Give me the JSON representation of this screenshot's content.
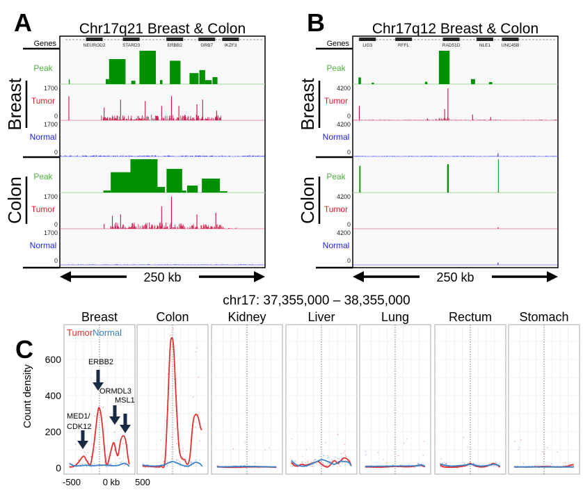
{
  "colors": {
    "peak": "#009000",
    "peak_label": "#4caf3a",
    "tumor": "#cc1040",
    "tumor_label": "#d81c28",
    "normal": "#2020ee",
    "curve_tumor": "#e03030",
    "curve_normal": "#3b7fc4",
    "arrow": "#182a44"
  },
  "panel_a": {
    "letter": "A",
    "title": "Chr17q21 Breast & Colon",
    "genes_label": "Genes",
    "genes": [
      "NEUROD2",
      "STARD3",
      "ERBB2",
      "GRB7",
      "IKZF3"
    ],
    "gene_positions_kb": [
      42,
      87,
      140,
      179,
      208
    ],
    "scale_bar": "250 kb",
    "groups": [
      {
        "name": "Breast",
        "peak": {
          "label": "Peak",
          "bars": [
            [
              11,
              12,
              15
            ],
            [
              56,
              60,
              15
            ],
            [
              60,
              80,
              75
            ],
            [
              87,
              92,
              10
            ],
            [
              97,
              117,
              100
            ],
            [
              122,
              125,
              12
            ],
            [
              134,
              147,
              70
            ],
            [
              158,
              169,
              33
            ],
            [
              170,
              177,
              42
            ],
            [
              177,
              185,
              12
            ],
            [
              186,
              192,
              21
            ]
          ]
        },
        "tumor": {
          "label": "Tumor",
          "max": "1700",
          "min": "0",
          "scale": 1700,
          "spikes": [
            [
              11,
              1280
            ],
            [
              54,
              680
            ],
            [
              74,
              1100
            ],
            [
              104,
              1020
            ],
            [
              124,
              760
            ],
            [
              136,
              1280
            ],
            [
              145,
              760
            ],
            [
              167,
              850
            ],
            [
              174,
              1100
            ],
            [
              191,
              510
            ]
          ],
          "noise": [
            [
              50,
              200,
              300
            ]
          ]
        },
        "normal": {
          "label": "Normal",
          "max": "1700",
          "min": "0",
          "scale": 1700,
          "noise": [
            [
              0,
              250,
              60
            ]
          ]
        }
      },
      {
        "name": "Colon",
        "peak": {
          "label": "Peak",
          "bars": [
            [
              53,
              62,
              6
            ],
            [
              62,
              86,
              61
            ],
            [
              86,
              119,
              100
            ],
            [
              119,
              128,
              17
            ],
            [
              130,
              149,
              71
            ],
            [
              149,
              154,
              6
            ],
            [
              155,
              168,
              21
            ],
            [
              173,
              195,
              42
            ],
            [
              195,
              204,
              4
            ]
          ]
        },
        "tumor": {
          "label": "Tumor",
          "max": "1700",
          "min": "0",
          "scale": 1700,
          "spikes": [
            [
              54,
              250
            ],
            [
              64,
              680
            ],
            [
              74,
              760
            ],
            [
              124,
              1190
            ],
            [
              136,
              1700
            ],
            [
              167,
              760
            ],
            [
              190,
              850
            ]
          ],
          "noise": [
            [
              62,
              168,
              350
            ],
            [
              172,
              200,
              250
            ],
            [
              200,
              215,
              60
            ]
          ]
        },
        "normal": {
          "label": "Normal",
          "max": "1700",
          "min": "0",
          "scale": 1700,
          "noise": [
            [
              0,
              250,
              30
            ]
          ]
        }
      }
    ]
  },
  "panel_b": {
    "letter": "B",
    "title": "Chr17q12 Breast & Colon",
    "genes_label": "Genes",
    "genes": [
      "LIG3",
      "RFFL",
      "RAD51D",
      "NLE1",
      "UNC45B"
    ],
    "gene_positions_kb": [
      18,
      62,
      120,
      161,
      192
    ],
    "scale_bar": "250 kb",
    "groups": [
      {
        "name": "Breast",
        "peak": {
          "label": "Peak",
          "bars": [
            [
              7,
              10,
              20
            ],
            [
              23,
              26,
              4
            ],
            [
              88,
              91,
              7
            ],
            [
              105,
              118,
              100
            ],
            [
              144,
              149,
              15
            ],
            [
              166,
              170,
              6
            ]
          ]
        },
        "tumor": {
          "label": "Tumor",
          "max": "4200",
          "min": "0",
          "scale": 4200,
          "spikes": [
            [
              8,
              1890
            ],
            [
              91,
              250
            ],
            [
              112,
              1470
            ],
            [
              116,
              4200
            ],
            [
              146,
              750
            ],
            [
              168,
              420
            ]
          ],
          "noise": [
            [
              0,
              250,
              80
            ],
            [
              100,
              118,
              500
            ]
          ]
        },
        "normal": {
          "label": "Normal",
          "max": "4200",
          "min": "0",
          "scale": 4200,
          "spikes": [
            [
              177,
              400
            ]
          ],
          "noise": [
            [
              0,
              250,
              80
            ]
          ]
        }
      },
      {
        "name": "Colon",
        "peak": {
          "label": "Peak",
          "bars": [
            [
              8,
              9.5,
              80
            ],
            [
              115,
              117,
              85
            ],
            [
              177,
              177.6,
              100
            ]
          ]
        },
        "tumor": {
          "label": "Tumor",
          "max": "4200",
          "min": "0",
          "scale": 4200,
          "spikes": [
            [
              177,
              200
            ]
          ],
          "noise": []
        },
        "normal": {
          "label": "Normal",
          "max": "4200",
          "min": "0",
          "scale": 4200,
          "spikes": [
            [
              177,
              300
            ]
          ],
          "noise": [
            [
              0,
              250,
              30
            ]
          ]
        }
      }
    ]
  },
  "chart_data": {
    "type": "line",
    "letter": "C",
    "title": "chr17: 37,355,000 – 38,355,000",
    "ylabel": "Count density",
    "xlim": [
      -500,
      500
    ],
    "ylim": [
      0,
      790
    ],
    "x_tick_labels": [
      "-500",
      "0 kb",
      "500"
    ],
    "y_ticks": [
      0,
      200,
      400,
      600
    ],
    "y_tick_labels": [
      "0",
      "200",
      "400",
      "600"
    ],
    "legend": {
      "tumor": "Tumor",
      "normal": "Normal",
      "placement": "top-left"
    },
    "annotations": [
      {
        "text": "ERBB2",
        "x_kb": 0
      },
      {
        "text": "ORMDL3",
        "x_kb": 230
      },
      {
        "text": "MSL1",
        "x_kb": 370
      },
      {
        "text": "MED1/",
        "x_kb": -230
      },
      {
        "text": "CDK12",
        "x_kb": -230
      }
    ],
    "facets": [
      {
        "name": "Breast",
        "tumor": [
          [
            -470,
            5
          ],
          [
            -400,
            8
          ],
          [
            -330,
            30
          ],
          [
            -250,
            65
          ],
          [
            -200,
            40
          ],
          [
            -140,
            20
          ],
          [
            -90,
            120
          ],
          [
            -30,
            300
          ],
          [
            0,
            330
          ],
          [
            40,
            250
          ],
          [
            90,
            60
          ],
          [
            120,
            15
          ],
          [
            170,
            80
          ],
          [
            220,
            140
          ],
          [
            260,
            90
          ],
          [
            290,
            70
          ],
          [
            330,
            150
          ],
          [
            370,
            178
          ],
          [
            410,
            150
          ],
          [
            445,
            60
          ],
          [
            465,
            20
          ]
        ],
        "normal": [
          [
            -470,
            25
          ],
          [
            -400,
            12
          ],
          [
            -300,
            12
          ],
          [
            -200,
            15
          ],
          [
            -100,
            12
          ],
          [
            0,
            15
          ],
          [
            100,
            15
          ],
          [
            200,
            12
          ],
          [
            300,
            15
          ],
          [
            380,
            25
          ],
          [
            430,
            20
          ],
          [
            465,
            8
          ]
        ]
      },
      {
        "name": "Colon",
        "tumor": [
          [
            -470,
            10
          ],
          [
            -350,
            8
          ],
          [
            -250,
            5
          ],
          [
            -180,
            8
          ],
          [
            -120,
            30
          ],
          [
            -80,
            300
          ],
          [
            -40,
            650
          ],
          [
            -10,
            720
          ],
          [
            20,
            650
          ],
          [
            60,
            350
          ],
          [
            100,
            120
          ],
          [
            140,
            55
          ],
          [
            190,
            45
          ],
          [
            230,
            20
          ],
          [
            270,
            60
          ],
          [
            320,
            250
          ],
          [
            360,
            295
          ],
          [
            400,
            280
          ],
          [
            440,
            220
          ],
          [
            460,
            210
          ]
        ],
        "normal": [
          [
            -470,
            15
          ],
          [
            -300,
            10
          ],
          [
            -150,
            15
          ],
          [
            -50,
            30
          ],
          [
            0,
            35
          ],
          [
            50,
            30
          ],
          [
            150,
            15
          ],
          [
            250,
            10
          ],
          [
            350,
            30
          ],
          [
            420,
            25
          ],
          [
            460,
            10
          ]
        ]
      },
      {
        "name": "Kidney",
        "tumor": [
          [
            -470,
            10
          ],
          [
            -420,
            5
          ],
          [
            -200,
            3
          ],
          [
            0,
            5
          ],
          [
            300,
            5
          ],
          [
            460,
            3
          ]
        ],
        "normal": [
          [
            -470,
            5
          ],
          [
            0,
            8
          ],
          [
            460,
            5
          ]
        ]
      },
      {
        "name": "Liver",
        "tumor": [
          [
            -470,
            30
          ],
          [
            -400,
            10
          ],
          [
            -300,
            20
          ],
          [
            -250,
            15
          ],
          [
            -150,
            25
          ],
          [
            -50,
            35
          ],
          [
            0,
            20
          ],
          [
            100,
            5
          ],
          [
            200,
            40
          ],
          [
            260,
            25
          ],
          [
            350,
            55
          ],
          [
            430,
            40
          ],
          [
            465,
            10
          ]
        ],
        "normal": [
          [
            -470,
            40
          ],
          [
            -380,
            15
          ],
          [
            -250,
            10
          ],
          [
            -100,
            30
          ],
          [
            0,
            45
          ],
          [
            100,
            35
          ],
          [
            200,
            20
          ],
          [
            280,
            35
          ],
          [
            350,
            35
          ],
          [
            430,
            30
          ],
          [
            465,
            10
          ]
        ]
      },
      {
        "name": "Lung",
        "tumor": [
          [
            -470,
            5
          ],
          [
            -200,
            4
          ],
          [
            0,
            8
          ],
          [
            200,
            6
          ],
          [
            350,
            12
          ],
          [
            400,
            15
          ],
          [
            465,
            5
          ]
        ],
        "normal": [
          [
            -470,
            8
          ],
          [
            0,
            10
          ],
          [
            350,
            12
          ],
          [
            400,
            18
          ],
          [
            465,
            8
          ]
        ]
      },
      {
        "name": "Rectum",
        "tumor": [
          [
            -470,
            15
          ],
          [
            -400,
            5
          ],
          [
            -200,
            5
          ],
          [
            -50,
            15
          ],
          [
            0,
            25
          ],
          [
            80,
            10
          ],
          [
            200,
            5
          ],
          [
            300,
            15
          ],
          [
            360,
            25
          ],
          [
            420,
            15
          ],
          [
            465,
            5
          ]
        ],
        "normal": [
          [
            -470,
            20
          ],
          [
            -300,
            10
          ],
          [
            -100,
            15
          ],
          [
            0,
            20
          ],
          [
            150,
            10
          ],
          [
            300,
            15
          ],
          [
            380,
            20
          ],
          [
            465,
            10
          ]
        ]
      },
      {
        "name": "Stomach",
        "tumor": [
          [
            -470,
            5
          ],
          [
            -200,
            5
          ],
          [
            0,
            8
          ],
          [
            200,
            5
          ],
          [
            350,
            8
          ],
          [
            420,
            15
          ],
          [
            465,
            18
          ]
        ],
        "normal": [
          [
            -470,
            5
          ],
          [
            0,
            5
          ],
          [
            465,
            5
          ]
        ]
      }
    ]
  }
}
